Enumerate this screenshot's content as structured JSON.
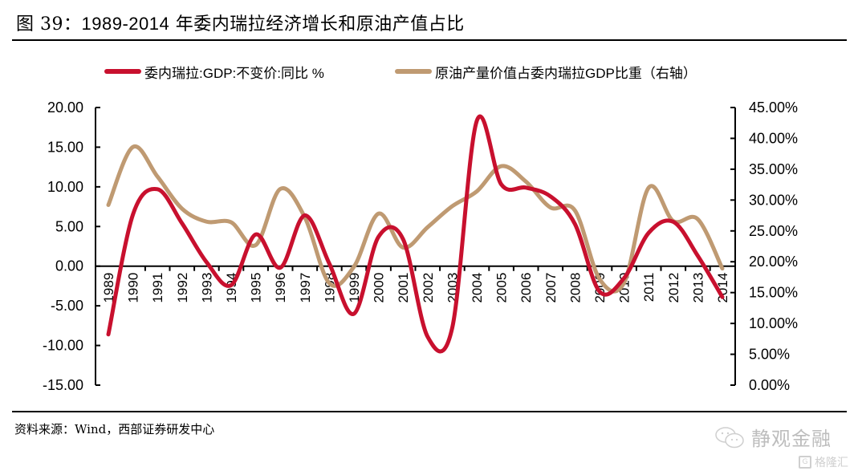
{
  "title": {
    "prefix": "图 39：",
    "years": "1989-2014",
    "rest": " 年委内瑞拉经济增长和原油产值占比"
  },
  "source": "资料来源：Wind，西部证券研发中心",
  "watermark": {
    "brand": "静观金融",
    "sub": "格隆汇"
  },
  "colors": {
    "gdp": "#C8102E",
    "oil": "#BF9A72",
    "axis": "#000000"
  },
  "chart_data": {
    "type": "line",
    "title": "1989-2014 年委内瑞拉经济增长和原油产值占比",
    "categories": [
      "1989",
      "1990",
      "1991",
      "1992",
      "1993",
      "1994",
      "1995",
      "1996",
      "1997",
      "1998",
      "1999",
      "2000",
      "2001",
      "2002",
      "2003",
      "2004",
      "2005",
      "2006",
      "2007",
      "2008",
      "2009",
      "2010",
      "2011",
      "2012",
      "2013",
      "2014"
    ],
    "series": [
      {
        "name": "委内瑞拉:GDP:不变价:同比 %",
        "axis": "left",
        "color": "#C8102E",
        "smooth": true,
        "values": [
          -8.6,
          6.5,
          9.7,
          5.4,
          0.5,
          -2.4,
          4.0,
          -0.2,
          6.4,
          0.3,
          -6.0,
          3.7,
          3.4,
          -8.9,
          -7.8,
          18.3,
          10.3,
          9.9,
          8.8,
          5.3,
          -3.2,
          -1.5,
          4.2,
          5.6,
          1.3,
          -3.9
        ]
      },
      {
        "name": "原油产量价值占委内瑞拉GDP比重（右轴）",
        "axis": "right",
        "color": "#BF9A72",
        "smooth": true,
        "values": [
          29.2,
          38.6,
          33.8,
          28.6,
          26.5,
          26.4,
          22.7,
          31.8,
          27.2,
          16.5,
          19.2,
          27.8,
          22.3,
          25.6,
          29.0,
          31.4,
          35.5,
          33.0,
          28.8,
          28.3,
          17.2,
          16.6,
          32.0,
          26.6,
          26.9,
          18.9
        ]
      }
    ],
    "y_left": {
      "min": -15,
      "max": 20,
      "step": 5,
      "ticks": [
        "20.00",
        "15.00",
        "10.00",
        "5.00",
        "0.00",
        "-5.00",
        "-10.00",
        "-15.00"
      ]
    },
    "y_right": {
      "min": 0,
      "max": 45,
      "step": 5,
      "ticks": [
        "45.00%",
        "40.00%",
        "35.00%",
        "30.00%",
        "25.00%",
        "20.00%",
        "15.00%",
        "10.00%",
        "5.00%",
        "0.00%"
      ]
    },
    "xlabel": "",
    "ylabel_left": "",
    "ylabel_right": "",
    "x_axis_crosses_left_at": 0,
    "grid": false,
    "legend": "top-center"
  }
}
